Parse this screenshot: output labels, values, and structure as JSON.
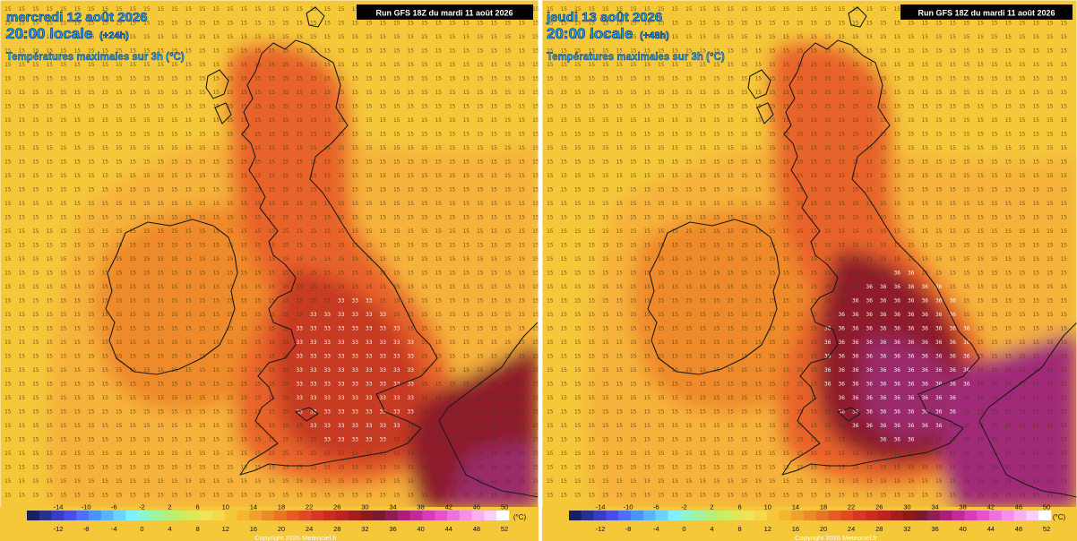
{
  "panels": [
    {
      "date_line": "mercredi 12 août 2026",
      "time_line": "20:00 locale",
      "lead": "(+24h)",
      "subtitle": "Températures maximales sur 3h (°C)",
      "run": "Run GFS 18Z du mardi 11 août 2026",
      "background_value": "15",
      "hot_region_value": "33"
    },
    {
      "date_line": "jeudi 13 août 2026",
      "time_line": "20:00 locale",
      "lead": "(+48h)",
      "subtitle": "Températures maximales sur 3h (°C)",
      "run": "Run GFS 18Z du mardi 11 août 2026",
      "background_value": "15",
      "hot_region_value": "36"
    }
  ],
  "scale": {
    "top_labels": [
      "-14",
      "-10",
      "-6",
      "-2",
      "2",
      "6",
      "10",
      "14",
      "18",
      "22",
      "26",
      "30",
      "34",
      "38",
      "42",
      "46",
      "50"
    ],
    "bottom_labels": [
      "-12",
      "-8",
      "-4",
      "0",
      "4",
      "8",
      "12",
      "16",
      "20",
      "24",
      "28",
      "32",
      "36",
      "40",
      "44",
      "48",
      "52"
    ],
    "unit": "(°C)",
    "colors": [
      "#1b1f5c",
      "#2b2f8f",
      "#3c3cc0",
      "#4a4ee6",
      "#4b6fff",
      "#4a93ff",
      "#59b4ff",
      "#6dd1ff",
      "#7ff0ff",
      "#8ff5d0",
      "#9ef5a0",
      "#b4f07a",
      "#ccec66",
      "#e0e85a",
      "#f0e25a",
      "#f7d84a",
      "#f5c83c",
      "#f3b532",
      "#f0a02c",
      "#ec8a28",
      "#e87426",
      "#e45e24",
      "#de4a22",
      "#d43a20",
      "#c82e1e",
      "#b8261c",
      "#a41f1a",
      "#8e1a19",
      "#7a1a2e",
      "#901c54",
      "#a92078",
      "#c22a98",
      "#d83cb6",
      "#e654cc",
      "#ef72dc",
      "#f590e6",
      "#f9b0ee",
      "#fcd0f4",
      "#ffffff"
    ]
  },
  "copyright": "Copyright 2026 Meteociel.fr"
}
